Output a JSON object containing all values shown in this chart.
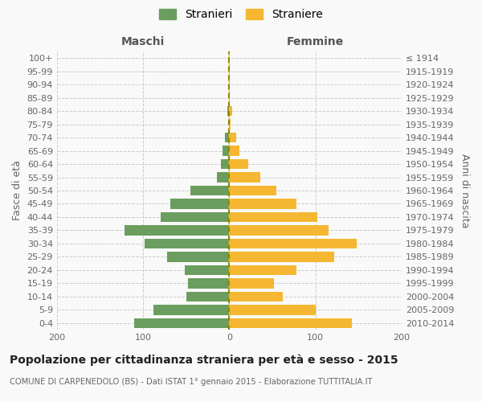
{
  "age_groups": [
    "0-4",
    "5-9",
    "10-14",
    "15-19",
    "20-24",
    "25-29",
    "30-34",
    "35-39",
    "40-44",
    "45-49",
    "50-54",
    "55-59",
    "60-64",
    "65-69",
    "70-74",
    "75-79",
    "80-84",
    "85-89",
    "90-94",
    "95-99",
    "100+"
  ],
  "birth_years": [
    "2010-2014",
    "2005-2009",
    "2000-2004",
    "1995-1999",
    "1990-1994",
    "1985-1989",
    "1980-1984",
    "1975-1979",
    "1970-1974",
    "1965-1969",
    "1960-1964",
    "1955-1959",
    "1950-1954",
    "1945-1949",
    "1940-1944",
    "1935-1939",
    "1930-1934",
    "1925-1929",
    "1920-1924",
    "1915-1919",
    "≤ 1914"
  ],
  "males": [
    110,
    88,
    50,
    48,
    52,
    72,
    98,
    122,
    80,
    68,
    45,
    14,
    10,
    8,
    5,
    0,
    2,
    0,
    0,
    0,
    0
  ],
  "females": [
    142,
    100,
    62,
    52,
    78,
    122,
    148,
    115,
    102,
    78,
    55,
    36,
    22,
    12,
    8,
    1,
    3,
    0,
    0,
    0,
    0
  ],
  "male_color": "#6b9e5e",
  "female_color": "#f5b731",
  "background_color": "#f9f9f9",
  "grid_color": "#cccccc",
  "center_line_color1": "#888800",
  "center_line_color2": "#f5b731",
  "title": "Popolazione per cittadinanza straniera per età e sesso - 2015",
  "subtitle": "COMUNE DI CARPENEDOLO (BS) - Dati ISTAT 1° gennaio 2015 - Elaborazione TUTTITALIA.IT",
  "ylabel_left": "Fasce di età",
  "ylabel_right": "Anni di nascita",
  "xlabel_maschi": "Maschi",
  "xlabel_femmine": "Femmine",
  "legend_stranieri": "Stranieri",
  "legend_straniere": "Straniere",
  "xlim": [
    -200,
    200
  ],
  "xticks": [
    -200,
    -100,
    0,
    100,
    200
  ],
  "xticklabels": [
    "200",
    "100",
    "0",
    "100",
    "200"
  ]
}
